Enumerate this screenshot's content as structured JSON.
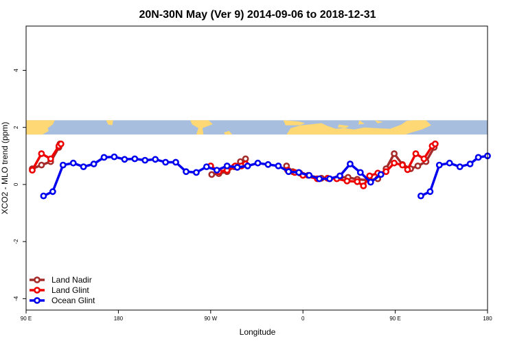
{
  "chart_data": {
    "type": "line",
    "title": "20N-30N May (Ver 9)   2014-09-06 to 2018-12-31",
    "xlabel": "Longitude",
    "ylabel": "XCO2 - MLO trend (ppm)",
    "xlim": [
      90,
      540
    ],
    "ylim": [
      -4.4,
      5.55
    ],
    "x_ticks": [
      {
        "value": 90,
        "label": "90 E"
      },
      {
        "value": 180,
        "label": "180"
      },
      {
        "value": 270,
        "label": "90 W"
      },
      {
        "value": 360,
        "label": "0"
      },
      {
        "value": 450,
        "label": "90 E"
      },
      {
        "value": 540,
        "label": "180"
      }
    ],
    "y_ticks": [
      {
        "value": -4,
        "label": "-4"
      },
      {
        "value": -2,
        "label": "-2"
      },
      {
        "value": 0,
        "label": "0"
      },
      {
        "value": 2,
        "label": "2"
      },
      {
        "value": 4,
        "label": "4"
      }
    ],
    "map_strip": {
      "ymin": 1.75,
      "ymax": 2.25,
      "ocean_color": "#a7bedf",
      "land_color": "#fdd874"
    },
    "legend_position": "bottom-left",
    "series": [
      {
        "name": "Land Nadir",
        "color": "#a52a2a",
        "segments": [
          [
            [
              96,
              0.55
            ],
            [
              105,
              0.68
            ],
            [
              114,
              0.8
            ],
            [
              122,
              1.3
            ],
            [
              123,
              1.42
            ]
          ],
          [
            [
              271,
              0.35
            ],
            [
              278,
              0.38
            ],
            [
              286,
              0.45
            ],
            [
              293,
              0.62
            ],
            [
              299,
              0.8
            ],
            [
              304,
              0.9
            ]
          ],
          [
            [
              344,
              0.65
            ],
            [
              350,
              0.45
            ],
            [
              357,
              0.4
            ],
            [
              365,
              0.32
            ],
            [
              378,
              0.22
            ],
            [
              386,
              0.2
            ],
            [
              396,
              0.25
            ],
            [
              404,
              0.25
            ],
            [
              413,
              0.18
            ],
            [
              425,
              0.15
            ],
            [
              433,
              0.2
            ],
            [
              441,
              0.55
            ],
            [
              449,
              1.08
            ],
            [
              457,
              0.7
            ],
            [
              465,
              0.55
            ],
            [
              472,
              0.65
            ],
            [
              480,
              0.8
            ],
            [
              488,
              1.3
            ],
            [
              489,
              1.42
            ]
          ]
        ]
      },
      {
        "name": "Land Glint",
        "color": "#ee0000",
        "segments": [
          [
            [
              96,
              0.5
            ],
            [
              105,
              1.08
            ],
            [
              114,
              0.9
            ],
            [
              122,
              1.35
            ],
            [
              124,
              1.42
            ]
          ],
          [
            [
              270,
              0.65
            ],
            [
              278,
              0.45
            ],
            [
              286,
              0.5
            ],
            [
              294,
              0.65
            ],
            [
              300,
              0.65
            ],
            [
              304,
              0.72
            ]
          ],
          [
            [
              345,
              0.5
            ],
            [
              352,
              0.42
            ],
            [
              360,
              0.32
            ],
            [
              374,
              0.2
            ],
            [
              384,
              0.22
            ],
            [
              393,
              0.2
            ],
            [
              403,
              0.12
            ],
            [
              413,
              0.1
            ],
            [
              419,
              -0.05
            ],
            [
              425,
              0.3
            ],
            [
              433,
              0.4
            ],
            [
              441,
              0.45
            ],
            [
              449,
              0.75
            ],
            [
              457,
              0.68
            ],
            [
              462,
              0.52
            ],
            [
              470,
              1.08
            ],
            [
              478,
              0.9
            ],
            [
              486,
              1.35
            ],
            [
              489,
              1.42
            ]
          ]
        ]
      },
      {
        "name": "Ocean Glint",
        "color": "#0000ee",
        "segments": [
          [
            [
              107,
              -0.4
            ],
            [
              116,
              -0.25
            ],
            [
              126,
              0.68
            ],
            [
              136,
              0.75
            ],
            [
              146,
              0.62
            ],
            [
              156,
              0.72
            ],
            [
              166,
              0.95
            ],
            [
              176,
              0.97
            ],
            [
              186,
              0.88
            ],
            [
              196,
              0.9
            ],
            [
              206,
              0.85
            ],
            [
              216,
              0.88
            ],
            [
              226,
              0.78
            ],
            [
              236,
              0.78
            ],
            [
              246,
              0.45
            ],
            [
              256,
              0.42
            ],
            [
              266,
              0.62
            ],
            [
              276,
              0.5
            ],
            [
              286,
              0.65
            ],
            [
              296,
              0.6
            ],
            [
              306,
              0.65
            ],
            [
              316,
              0.75
            ],
            [
              326,
              0.7
            ],
            [
              336,
              0.65
            ],
            [
              346,
              0.45
            ],
            [
              356,
              0.42
            ],
            [
              366,
              0.32
            ],
            [
              376,
              0.2
            ],
            [
              386,
              0.2
            ],
            [
              396,
              0.3
            ],
            [
              406,
              0.72
            ],
            [
              416,
              0.42
            ],
            [
              426,
              0.08
            ],
            [
              436,
              0.35
            ]
          ],
          [
            [
              475,
              -0.4
            ],
            [
              484,
              -0.25
            ],
            [
              493,
              0.68
            ],
            [
              503,
              0.75
            ],
            [
              513,
              0.62
            ],
            [
              523,
              0.72
            ],
            [
              531,
              0.95
            ],
            [
              540,
              1.0
            ]
          ]
        ]
      }
    ]
  }
}
